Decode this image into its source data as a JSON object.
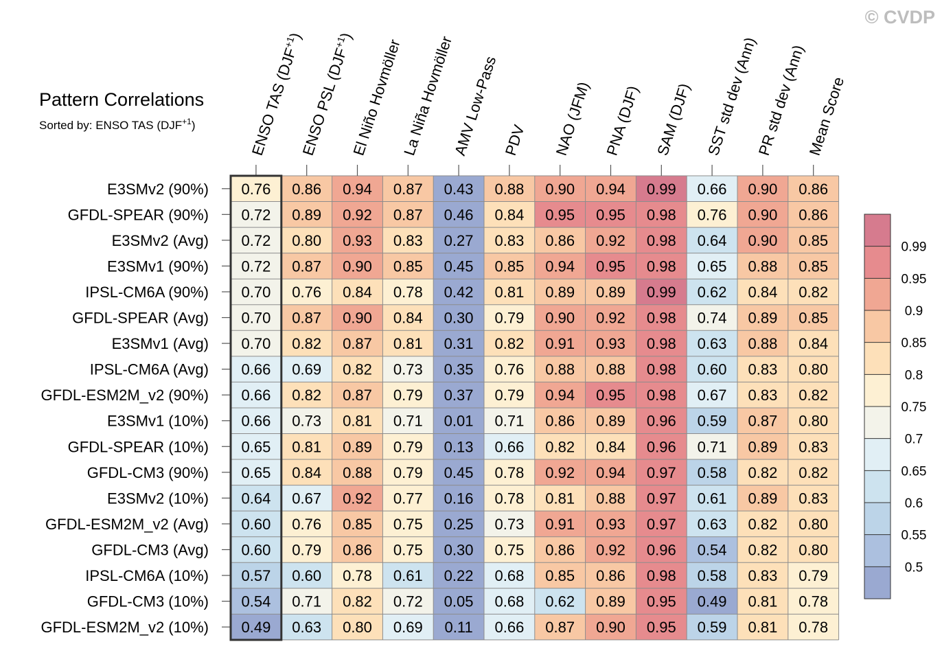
{
  "chart_data": {
    "type": "heatmap",
    "title": "Pattern Correlations",
    "subtitle": "Sorted by: ENSO TAS (DJF",
    "subtitle_sup": "+1",
    "subtitle_close": ")",
    "watermark": "© CVDP",
    "columns": [
      {
        "label": "ENSO TAS (DJF",
        "sup": "+1",
        "close": ")"
      },
      {
        "label": "ENSO PSL (DJF",
        "sup": "+1",
        "close": ")"
      },
      {
        "label": "El Niño Hovmöller"
      },
      {
        "label": "La Niña Hovmöller"
      },
      {
        "label": "AMV Low-Pass"
      },
      {
        "label": "PDV"
      },
      {
        "label": "NAO (JFM)"
      },
      {
        "label": "PNA (DJF)"
      },
      {
        "label": "SAM (DJF)"
      },
      {
        "label": "SST std dev (Ann)"
      },
      {
        "label": "PR std dev (Ann)"
      },
      {
        "label": "Mean Score"
      }
    ],
    "rows": [
      "E3SMv2 (90%)",
      "GFDL-SPEAR (90%)",
      "E3SMv2 (Avg)",
      "E3SMv1 (90%)",
      "IPSL-CM6A (90%)",
      "GFDL-SPEAR (Avg)",
      "E3SMv1 (Avg)",
      "IPSL-CM6A (Avg)",
      "GFDL-ESM2M_v2 (90%)",
      "E3SMv1 (10%)",
      "GFDL-SPEAR (10%)",
      "GFDL-CM3 (90%)",
      "E3SMv2 (10%)",
      "GFDL-ESM2M_v2 (Avg)",
      "GFDL-CM3 (Avg)",
      "IPSL-CM6A (10%)",
      "GFDL-CM3 (10%)",
      "GFDL-ESM2M_v2 (10%)"
    ],
    "values": [
      [
        "0.76",
        "0.86",
        "0.94",
        "0.87",
        "0.43",
        "0.88",
        "0.90",
        "0.94",
        "0.99",
        "0.66",
        "0.90",
        "0.86"
      ],
      [
        "0.72",
        "0.89",
        "0.92",
        "0.87",
        "0.46",
        "0.84",
        "0.95",
        "0.95",
        "0.98",
        "0.76",
        "0.90",
        "0.86"
      ],
      [
        "0.72",
        "0.80",
        "0.93",
        "0.83",
        "0.27",
        "0.83",
        "0.86",
        "0.92",
        "0.98",
        "0.64",
        "0.90",
        "0.85"
      ],
      [
        "0.72",
        "0.87",
        "0.90",
        "0.85",
        "0.45",
        "0.85",
        "0.94",
        "0.95",
        "0.98",
        "0.65",
        "0.88",
        "0.85"
      ],
      [
        "0.70",
        "0.76",
        "0.84",
        "0.78",
        "0.42",
        "0.81",
        "0.89",
        "0.89",
        "0.99",
        "0.62",
        "0.84",
        "0.82"
      ],
      [
        "0.70",
        "0.87",
        "0.90",
        "0.84",
        "0.30",
        "0.79",
        "0.90",
        "0.92",
        "0.98",
        "0.74",
        "0.89",
        "0.85"
      ],
      [
        "0.70",
        "0.82",
        "0.87",
        "0.81",
        "0.31",
        "0.82",
        "0.91",
        "0.93",
        "0.98",
        "0.63",
        "0.88",
        "0.84"
      ],
      [
        "0.66",
        "0.69",
        "0.82",
        "0.73",
        "0.35",
        "0.76",
        "0.88",
        "0.88",
        "0.98",
        "0.60",
        "0.83",
        "0.80"
      ],
      [
        "0.66",
        "0.82",
        "0.87",
        "0.79",
        "0.37",
        "0.79",
        "0.94",
        "0.95",
        "0.98",
        "0.67",
        "0.83",
        "0.82"
      ],
      [
        "0.66",
        "0.73",
        "0.81",
        "0.71",
        "0.01",
        "0.71",
        "0.86",
        "0.89",
        "0.96",
        "0.59",
        "0.87",
        "0.80"
      ],
      [
        "0.65",
        "0.81",
        "0.89",
        "0.79",
        "0.13",
        "0.66",
        "0.82",
        "0.84",
        "0.96",
        "0.71",
        "0.89",
        "0.83"
      ],
      [
        "0.65",
        "0.84",
        "0.88",
        "0.79",
        "0.45",
        "0.78",
        "0.92",
        "0.94",
        "0.97",
        "0.58",
        "0.82",
        "0.82"
      ],
      [
        "0.64",
        "0.67",
        "0.92",
        "0.77",
        "0.16",
        "0.78",
        "0.81",
        "0.88",
        "0.97",
        "0.61",
        "0.89",
        "0.83"
      ],
      [
        "0.60",
        "0.76",
        "0.85",
        "0.75",
        "0.25",
        "0.73",
        "0.91",
        "0.93",
        "0.97",
        "0.63",
        "0.82",
        "0.80"
      ],
      [
        "0.60",
        "0.79",
        "0.86",
        "0.75",
        "0.30",
        "0.75",
        "0.86",
        "0.92",
        "0.96",
        "0.54",
        "0.82",
        "0.80"
      ],
      [
        "0.57",
        "0.60",
        "0.78",
        "0.61",
        "0.22",
        "0.68",
        "0.85",
        "0.86",
        "0.98",
        "0.58",
        "0.83",
        "0.79"
      ],
      [
        "0.54",
        "0.71",
        "0.82",
        "0.72",
        "0.05",
        "0.68",
        "0.62",
        "0.89",
        "0.95",
        "0.49",
        "0.81",
        "0.78"
      ],
      [
        "0.49",
        "0.63",
        "0.80",
        "0.69",
        "0.11",
        "0.66",
        "0.87",
        "0.90",
        "0.95",
        "0.59",
        "0.81",
        "0.78"
      ]
    ],
    "sorted_column_index": 0,
    "colorbar": {
      "levels": [
        0.5,
        0.55,
        0.6,
        0.65,
        0.7,
        0.75,
        0.8,
        0.85,
        0.9,
        0.95,
        0.99
      ],
      "tick_labels": [
        "0.5",
        "0.55",
        "0.6",
        "0.65",
        "0.7",
        "0.75",
        "0.8",
        "0.85",
        "0.9",
        "0.95",
        "0.99"
      ],
      "colors": [
        "#9aa9d1",
        "#acc0df",
        "#bcd4e8",
        "#cde3ef",
        "#e1eff5",
        "#f3f3ea",
        "#fdf0d3",
        "#fde0b9",
        "#f8c8a4",
        "#f0a793",
        "#e68b8e",
        "#d67b8e"
      ]
    }
  }
}
